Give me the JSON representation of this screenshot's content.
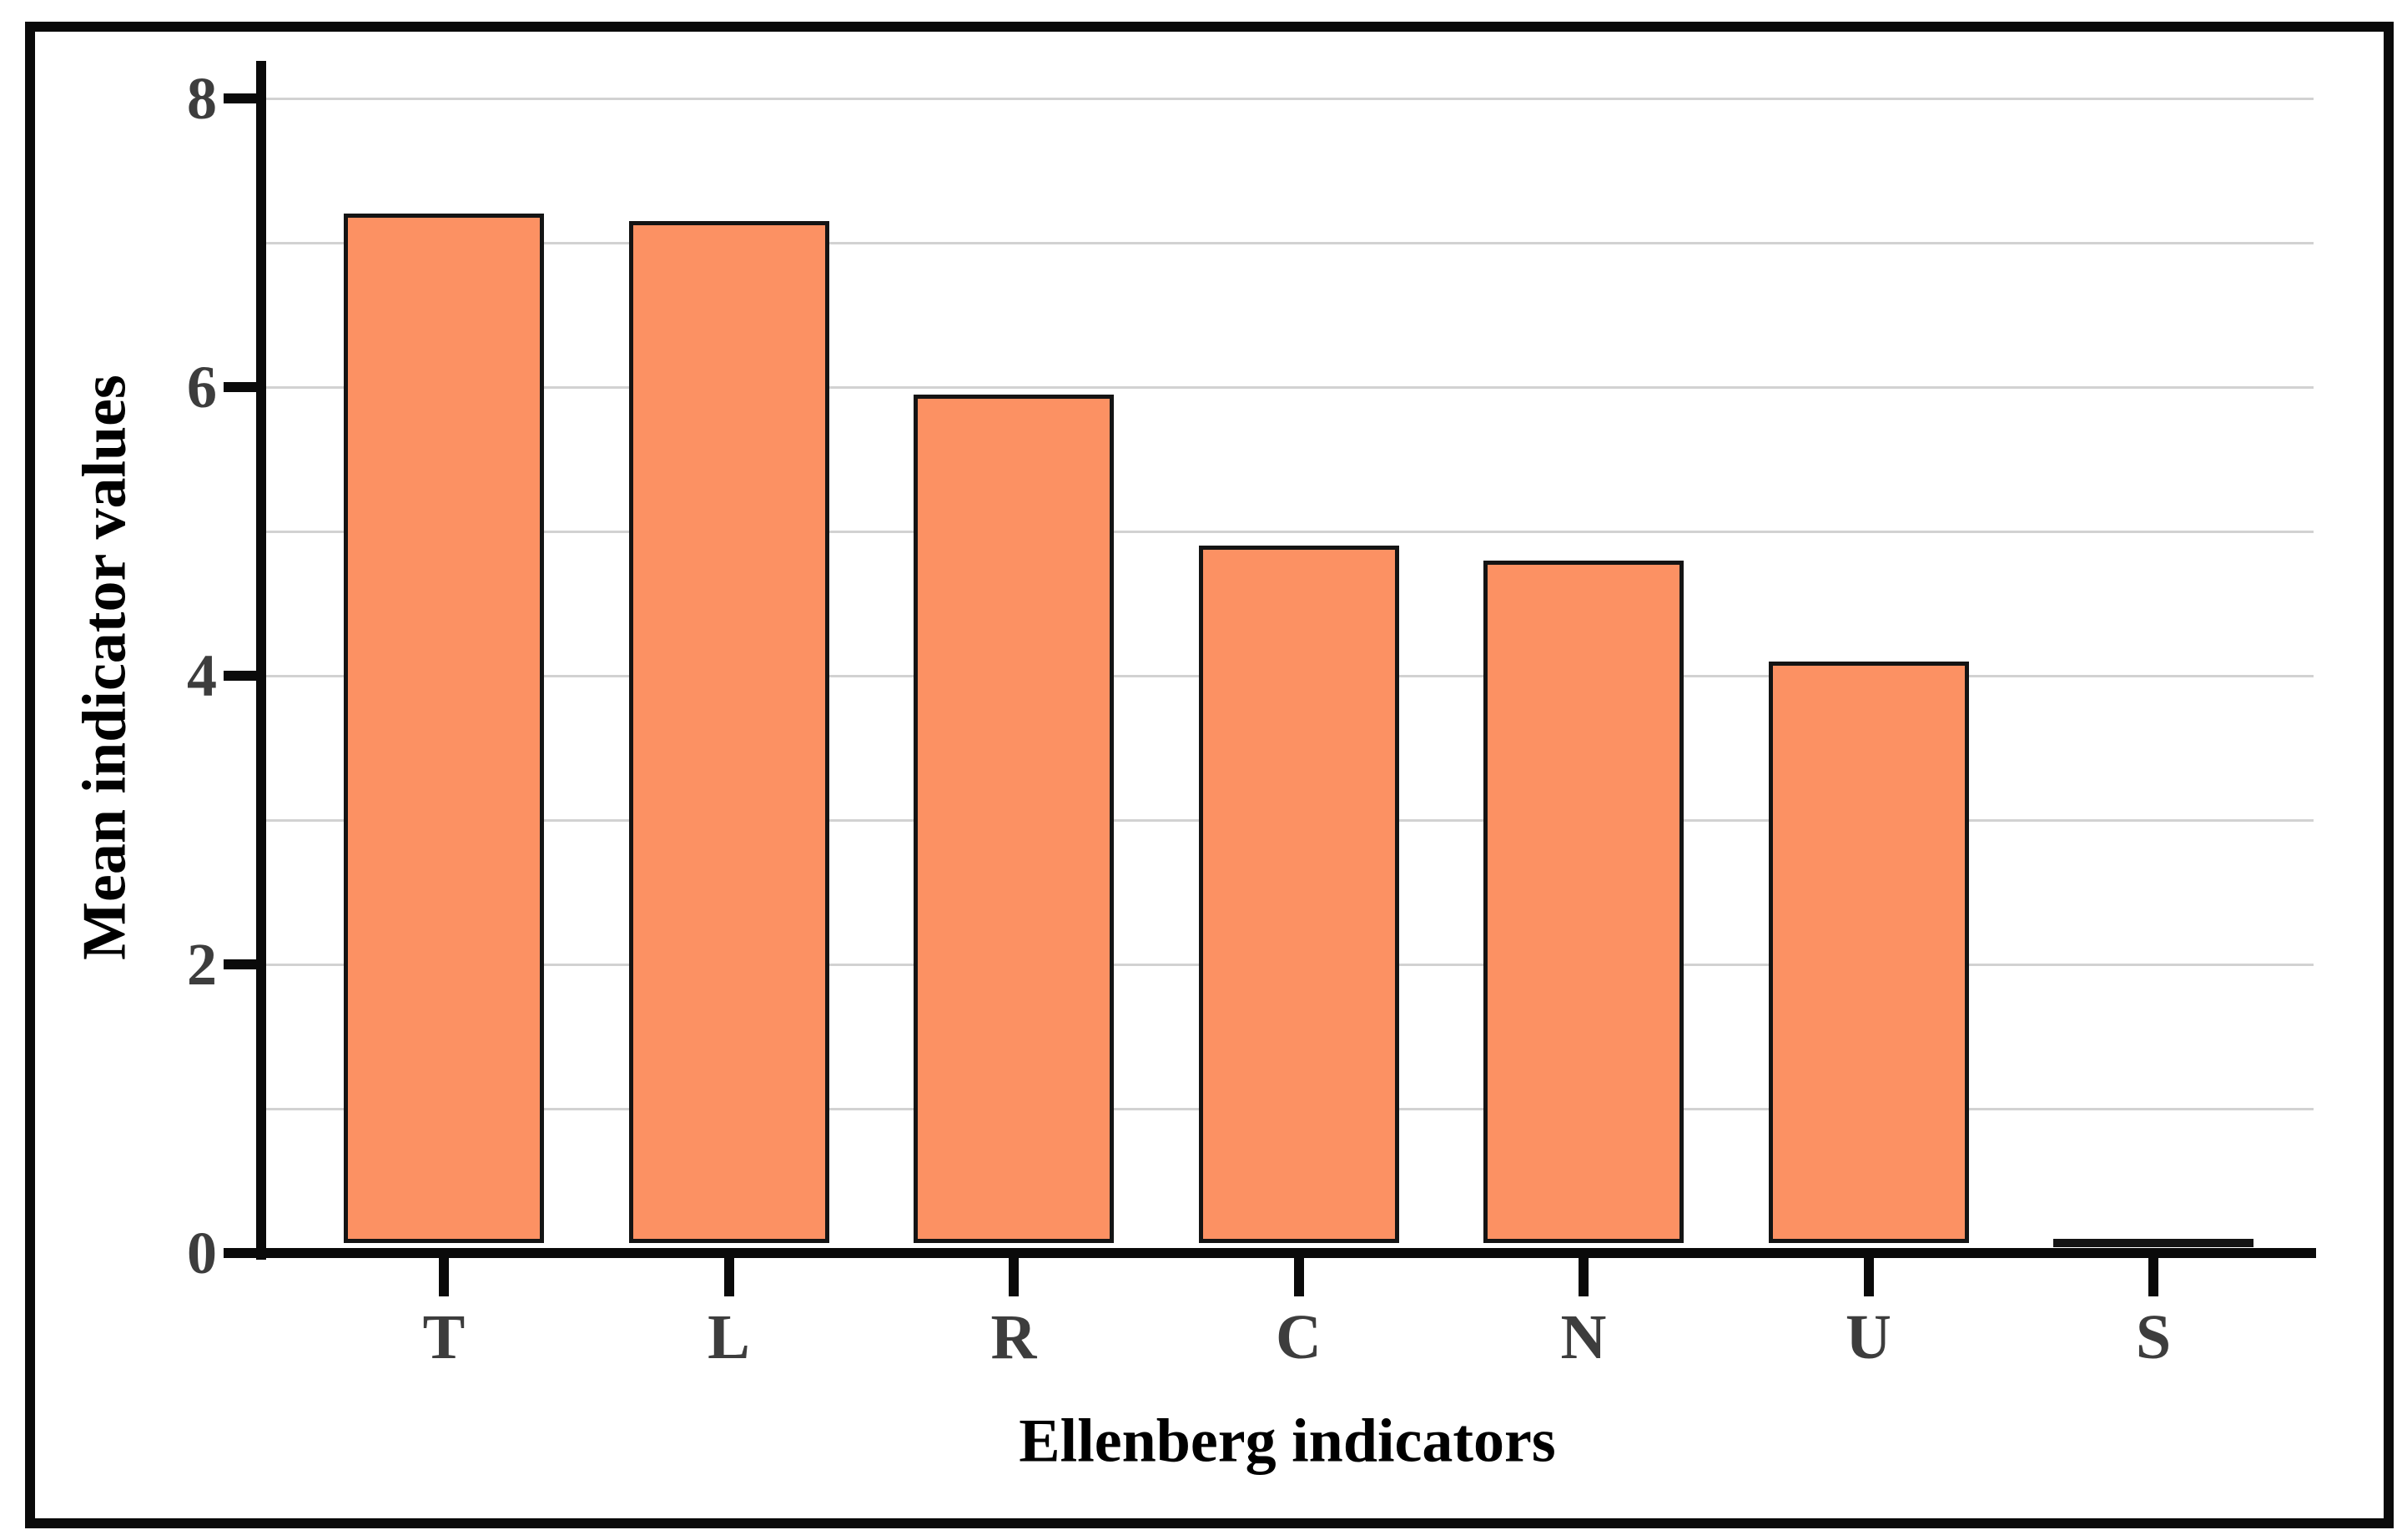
{
  "figure": {
    "background_color": "#ffffff",
    "frame_color": "#0a0a0a"
  },
  "chart_data": {
    "type": "bar",
    "title": "",
    "categories": [
      "T",
      "L",
      "R",
      "C",
      "N",
      "U",
      "S"
    ],
    "values": [
      7.2,
      7.15,
      5.95,
      4.9,
      4.8,
      4.1,
      0.1
    ],
    "xlabel": "Ellenberg indicators",
    "ylabel": "Mean indicator values",
    "ylim": [
      0,
      8
    ],
    "yticks": [
      0,
      2,
      4,
      6,
      8
    ],
    "gridline_values": [
      1,
      2,
      3,
      4,
      5,
      6,
      7,
      8
    ],
    "grid": "horizontal-on",
    "legend_position": "none",
    "bar_color": "#fc9163",
    "bar_border_color": "#141414",
    "gridline_color": "#d2d2d2",
    "axis_color": "#0a0a0a",
    "tick_label_color": "#3d3d3d",
    "axis_title_color": "#000000"
  }
}
